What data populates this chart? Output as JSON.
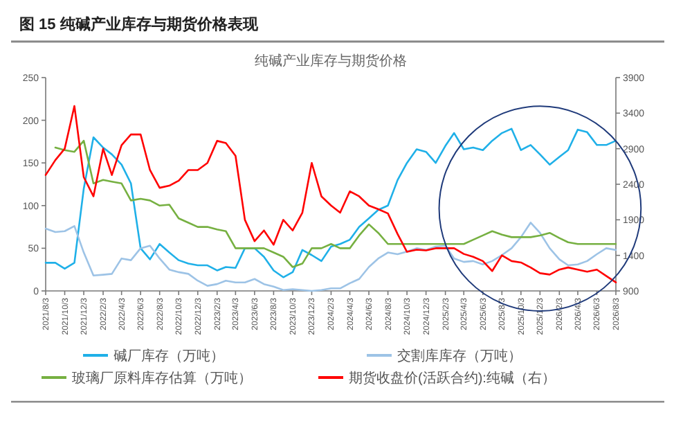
{
  "chart_data": {
    "type": "line",
    "title": "图 15    纯碱产业库存与期货价格表现",
    "subtitle": "纯碱产业库存与期货价格",
    "x": [
      "2021-08-03",
      "2021-09-03",
      "2021-10-03",
      "2021-11-03",
      "2021-12-03",
      "2022-01-03",
      "2022-02-03",
      "2022-03-03",
      "2022-04-03",
      "2022-05-03",
      "2022-06-03",
      "2022-07-03",
      "2022-08-03",
      "2022-09-03",
      "2022-10-03",
      "2022-11-03",
      "2022-12-03",
      "2023-01-03",
      "2023-02-03",
      "2023-03-03",
      "2023-04-03",
      "2023-05-03",
      "2023-06-03",
      "2023-07-03",
      "2023-08-03",
      "2023-09-03",
      "2023-10-03",
      "2023-11-03",
      "2023-12-03",
      "2024-01-03",
      "2024-02-03",
      "2024-03-03",
      "2024-04-03",
      "2024-05-03",
      "2024-06-03",
      "2024-07-03",
      "2024-08-03",
      "2024-09-03",
      "2024-10-03",
      "2024-11-03",
      "2024-12-03",
      "2025-01-03",
      "2025-02-03",
      "2025-03-03",
      "2025-04-03",
      "2025-05-03",
      "2025-06-03",
      "2025-07-03",
      "2025-08-03",
      "2025-09-03",
      "2025-10-03",
      "2025-11-03",
      "2025-12-03",
      "2026-01-03",
      "2026-02-03",
      "2026-03-03",
      "2026-04-03",
      "2026-05-03",
      "2026-06-03",
      "2026-07-03",
      "2026-08-03"
    ],
    "series": [
      {
        "name": "碱厂库存（万吨）",
        "color": "#1fb0e8",
        "values": [
          33,
          33,
          26,
          33,
          120,
          180,
          168,
          160,
          148,
          126,
          50,
          37,
          55,
          45,
          36,
          32,
          30,
          30,
          24,
          28,
          27,
          50,
          50,
          40,
          24,
          16,
          22,
          48,
          42,
          35,
          52,
          55,
          60,
          75,
          85,
          95,
          100,
          130,
          150,
          166,
          163,
          150,
          170,
          185,
          166,
          168,
          165,
          176,
          185,
          190,
          165,
          171,
          160,
          148,
          157,
          165,
          189,
          186,
          171,
          171,
          176
        ]
      },
      {
        "name": "交割库库存（万吨）",
        "color": "#9dc3e6",
        "values": [
          73,
          69,
          70,
          76,
          45,
          18,
          19,
          20,
          38,
          36,
          50,
          53,
          38,
          25,
          22,
          20,
          12,
          6,
          8,
          12,
          10,
          10,
          14,
          8,
          5,
          1,
          2,
          1,
          0,
          1,
          3,
          3,
          9,
          14,
          28,
          38,
          45,
          43,
          46,
          50,
          48,
          52,
          53,
          38,
          34,
          35,
          31,
          35,
          42,
          50,
          63,
          80,
          68,
          50,
          37,
          30,
          31,
          35,
          43,
          50,
          48
        ]
      },
      {
        "name": "玻璃厂原料库存估算（万吨）",
        "color": "#76b041",
        "values": [
          null,
          168,
          165,
          163,
          176,
          126,
          130,
          128,
          126,
          106,
          108,
          106,
          100,
          101,
          85,
          80,
          75,
          75,
          72,
          70,
          50,
          50,
          50,
          50,
          45,
          40,
          28,
          32,
          50,
          50,
          55,
          50,
          50,
          65,
          78,
          68,
          55,
          55,
          55,
          55,
          55,
          55,
          55,
          55,
          55,
          60,
          65,
          70,
          66,
          63,
          63,
          63,
          65,
          68,
          62,
          57,
          55,
          55,
          55,
          55,
          55
        ]
      },
      {
        "name": "期货收盘价(活跃合约):纯碱（右）",
        "color": "#ff0000",
        "axis": "y2",
        "values": [
          2530,
          2740,
          2900,
          3500,
          2500,
          2230,
          2900,
          2530,
          2950,
          3100,
          3100,
          2600,
          2350,
          2380,
          2450,
          2600,
          2600,
          2700,
          3010,
          2980,
          2800,
          1900,
          1600,
          1750,
          1550,
          1900,
          1750,
          2000,
          2700,
          2230,
          2100,
          2000,
          2300,
          2230,
          2100,
          2050,
          1990,
          1700,
          1450,
          1480,
          1470,
          1500,
          1500,
          1500,
          1420,
          1380,
          1320,
          1180,
          1400,
          1320,
          1300,
          1230,
          1150,
          1130,
          1200,
          1230,
          1200,
          1170,
          1200,
          1110,
          1020
        ]
      }
    ],
    "xlim": [
      "2021-08-03",
      "2026-08-03"
    ],
    "xticks": [
      {
        "value": "2021-08-03",
        "label": "2021/8/3"
      },
      {
        "value": "2021-10-03",
        "label": "2021/10/3"
      },
      {
        "value": "2021-12-03",
        "label": "2021/12/3"
      },
      {
        "value": "2022-02-03",
        "label": "2022/2/3"
      },
      {
        "value": "2022-04-03",
        "label": "2022/4/3"
      },
      {
        "value": "2022-06-03",
        "label": "2022/6/3"
      },
      {
        "value": "2022-08-03",
        "label": "2022/8/3"
      },
      {
        "value": "2022-10-03",
        "label": "2022/10/3"
      },
      {
        "value": "2022-12-03",
        "label": "2022/12/3"
      },
      {
        "value": "2023-02-03",
        "label": "2023/2/3"
      },
      {
        "value": "2023-04-03",
        "label": "2023/4/3"
      },
      {
        "value": "2023-06-03",
        "label": "2023/6/3"
      },
      {
        "value": "2023-08-03",
        "label": "2023/8/3"
      },
      {
        "value": "2023-10-03",
        "label": "2023/10/3"
      },
      {
        "value": "2023-12-03",
        "label": "2023/12/3"
      },
      {
        "value": "2024-02-03",
        "label": "2024/2/3"
      },
      {
        "value": "2024-04-03",
        "label": "2024/4/3"
      },
      {
        "value": "2024-06-03",
        "label": "2024/6/3"
      },
      {
        "value": "2024-08-03",
        "label": "2024/8/3"
      },
      {
        "value": "2024-10-03",
        "label": "2024/10/3"
      },
      {
        "value": "2024-12-03",
        "label": "2024/12/3"
      },
      {
        "value": "2025-02-03",
        "label": "2025/2/3"
      },
      {
        "value": "2025-04-03",
        "label": "2025/4/3"
      },
      {
        "value": "2025-06-03",
        "label": "2025/6/3"
      },
      {
        "value": "2025-08-03",
        "label": "2025/8/3"
      },
      {
        "value": "2025-10-03",
        "label": "2025/10/3"
      },
      {
        "value": "2025-12-03",
        "label": "2025/12/3"
      },
      {
        "value": "2026-02-03",
        "label": "2026/2/3"
      },
      {
        "value": "2026-04-03",
        "label": "2026/4/3"
      },
      {
        "value": "2026-06-03",
        "label": "2026/6/3"
      },
      {
        "value": "2026-08-03",
        "label": "2026/8/3"
      }
    ],
    "ylim": [
      0,
      250
    ],
    "yticks": [
      0,
      50,
      100,
      150,
      200,
      250
    ],
    "y2lim": [
      900,
      3900
    ],
    "y2ticks": [
      900,
      1400,
      1900,
      2400,
      2900,
      3400,
      3900
    ],
    "legend": "bottom",
    "grid": false,
    "marker": "none",
    "line_style": "solid"
  }
}
